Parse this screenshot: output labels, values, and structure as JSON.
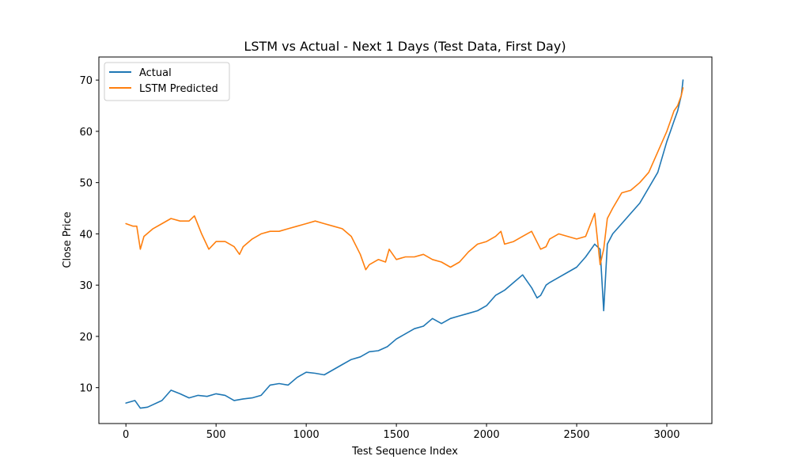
{
  "chart_data": {
    "type": "line",
    "title": "LSTM vs Actual - Next 1 Days (Test Data, First Day)",
    "xlabel": "Test Sequence Index",
    "ylabel": "Close Price",
    "xlim": [
      -150,
      3250
    ],
    "ylim": [
      3,
      74.5
    ],
    "xticks": [
      0,
      500,
      1000,
      1500,
      2000,
      2500,
      3000
    ],
    "yticks": [
      10,
      20,
      30,
      40,
      50,
      60,
      70
    ],
    "grid": false,
    "legend_position": "upper-left",
    "series": [
      {
        "name": "Actual",
        "color": "#1f77b4",
        "x": [
          0,
          50,
          80,
          120,
          200,
          250,
          300,
          350,
          400,
          450,
          500,
          550,
          600,
          650,
          700,
          750,
          800,
          850,
          900,
          950,
          1000,
          1050,
          1100,
          1150,
          1200,
          1250,
          1300,
          1350,
          1400,
          1450,
          1500,
          1550,
          1600,
          1650,
          1700,
          1750,
          1800,
          1850,
          1900,
          1950,
          2000,
          2050,
          2100,
          2150,
          2200,
          2250,
          2280,
          2300,
          2330,
          2350,
          2400,
          2450,
          2500,
          2550,
          2600,
          2630,
          2650,
          2670,
          2700,
          2750,
          2800,
          2850,
          2900,
          2950,
          3000,
          3020,
          3040,
          3060,
          3080,
          3090
        ],
        "values": [
          7.0,
          7.5,
          6.0,
          6.2,
          7.5,
          9.5,
          8.8,
          8.0,
          8.5,
          8.3,
          8.8,
          8.5,
          7.5,
          7.8,
          8.0,
          8.5,
          10.5,
          10.8,
          10.5,
          12.0,
          13.0,
          12.8,
          12.5,
          13.5,
          14.5,
          15.5,
          16.0,
          17.0,
          17.2,
          18.0,
          19.5,
          20.5,
          21.5,
          22.0,
          23.5,
          22.5,
          23.5,
          24.0,
          24.5,
          25.0,
          26.0,
          28.0,
          29.0,
          30.5,
          32.0,
          29.5,
          27.5,
          28.0,
          30.0,
          30.5,
          31.5,
          32.5,
          33.5,
          35.5,
          38.0,
          37.0,
          25.0,
          38.0,
          40.0,
          42.0,
          44.0,
          46.0,
          49.0,
          52.0,
          58.0,
          60.0,
          62.0,
          64.0,
          67.0,
          70.0
        ]
      },
      {
        "name": "LSTM Predicted",
        "color": "#ff7f0e",
        "x": [
          0,
          40,
          60,
          80,
          100,
          150,
          200,
          250,
          300,
          350,
          380,
          420,
          460,
          500,
          550,
          600,
          630,
          650,
          700,
          750,
          800,
          850,
          900,
          950,
          1000,
          1050,
          1100,
          1150,
          1200,
          1250,
          1300,
          1330,
          1350,
          1400,
          1440,
          1460,
          1500,
          1550,
          1600,
          1650,
          1700,
          1750,
          1800,
          1850,
          1900,
          1950,
          2000,
          2050,
          2080,
          2100,
          2150,
          2200,
          2250,
          2300,
          2330,
          2350,
          2400,
          2450,
          2500,
          2550,
          2600,
          2630,
          2650,
          2670,
          2700,
          2750,
          2800,
          2850,
          2900,
          2950,
          3000,
          3020,
          3040,
          3060,
          3080,
          3090
        ],
        "values": [
          42.0,
          41.5,
          41.5,
          37.0,
          39.5,
          41.0,
          42.0,
          43.0,
          42.5,
          42.5,
          43.5,
          40.0,
          37.0,
          38.5,
          38.5,
          37.5,
          36.0,
          37.5,
          39.0,
          40.0,
          40.5,
          40.5,
          41.0,
          41.5,
          42.0,
          42.5,
          42.0,
          41.5,
          41.0,
          39.5,
          36.0,
          33.0,
          34.0,
          35.0,
          34.5,
          37.0,
          35.0,
          35.5,
          35.5,
          36.0,
          35.0,
          34.5,
          33.5,
          34.5,
          36.5,
          38.0,
          38.5,
          39.5,
          40.5,
          38.0,
          38.5,
          39.5,
          40.5,
          37.0,
          37.5,
          39.0,
          40.0,
          39.5,
          39.0,
          39.5,
          44.0,
          34.0,
          37.0,
          43.0,
          45.0,
          48.0,
          48.5,
          50.0,
          52.0,
          56.0,
          60.0,
          62.0,
          64.0,
          65.0,
          67.0,
          68.5
        ]
      }
    ]
  }
}
